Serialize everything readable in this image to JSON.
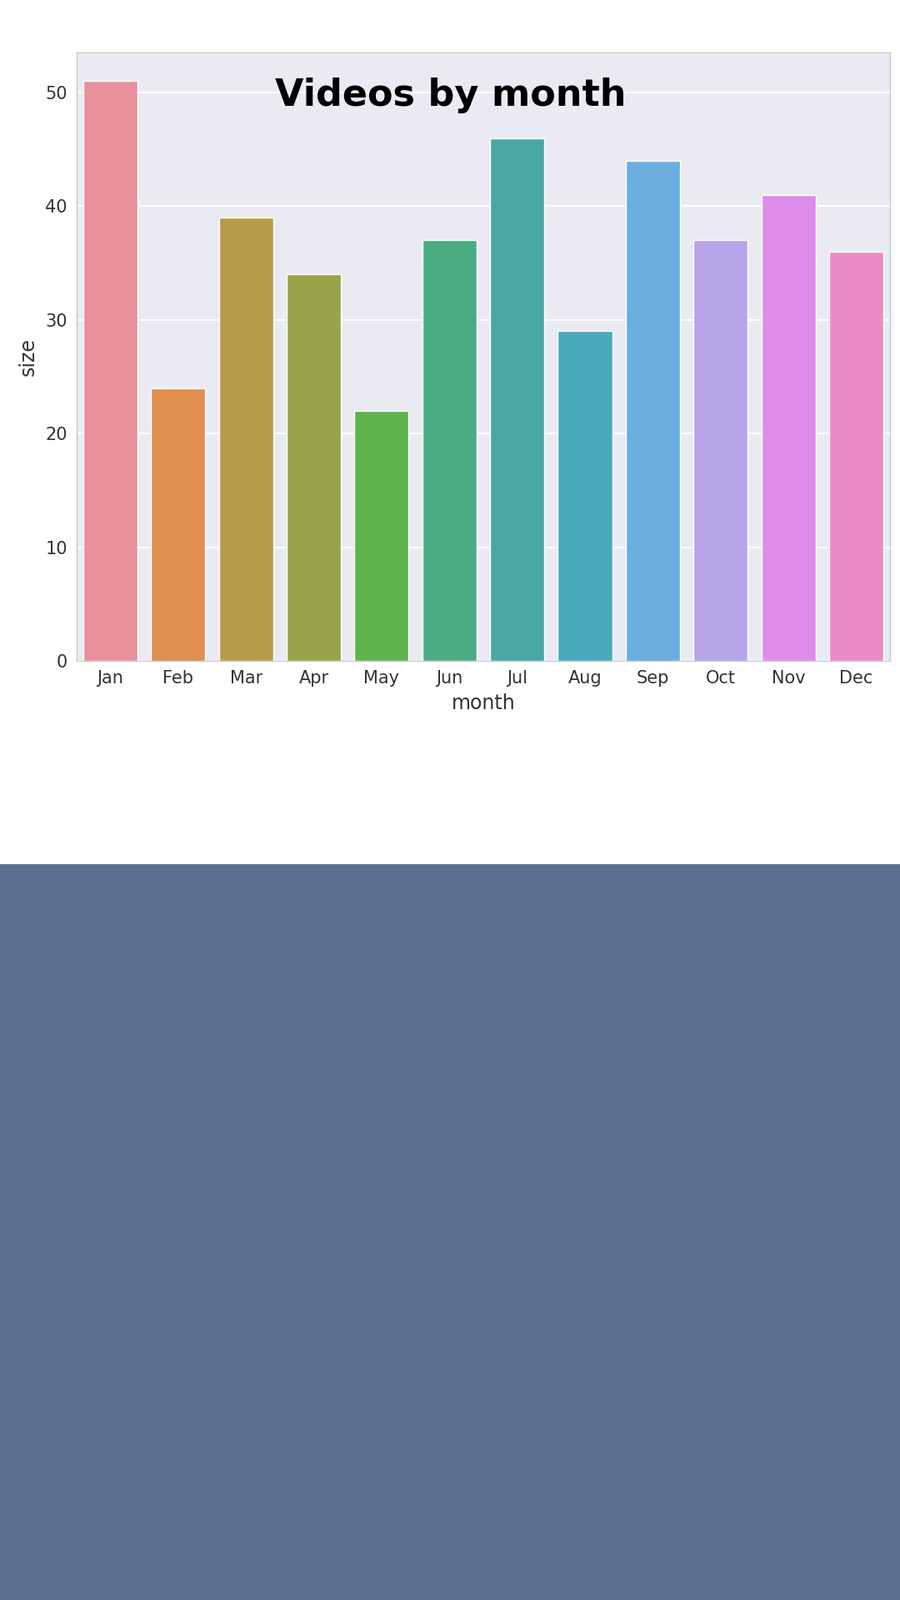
{
  "chart_data": {
    "type": "bar",
    "title": "Videos by month",
    "categories": [
      "Jan",
      "Feb",
      "Mar",
      "Apr",
      "May",
      "Jun",
      "Jul",
      "Aug",
      "Sep",
      "Oct",
      "Nov",
      "Dec"
    ],
    "values": [
      51,
      24,
      39,
      34,
      22,
      37,
      46,
      29,
      44,
      37,
      41,
      36
    ],
    "colors": [
      "#e8909c",
      "#e08f50",
      "#b89b48",
      "#99a34a",
      "#5eb34a",
      "#4aad82",
      "#48a9a2",
      "#4aa9bd",
      "#6aaee0",
      "#b5a5e8",
      "#de8ce8",
      "#e98cc4"
    ],
    "x_label": "month",
    "y_label": "size",
    "ylim": [
      0,
      53.5
    ],
    "yticks": [
      0,
      10,
      20,
      30,
      40,
      50
    ],
    "grid": true
  }
}
